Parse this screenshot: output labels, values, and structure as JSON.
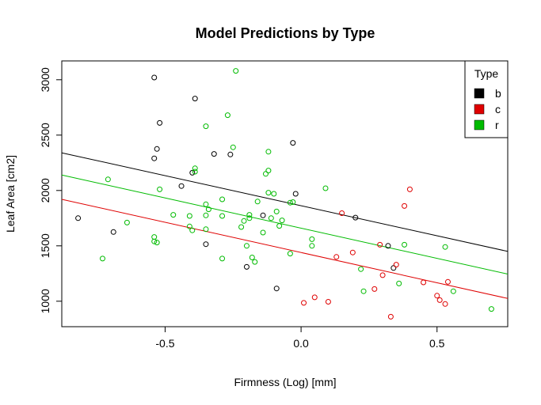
{
  "chart_data": {
    "type": "scatter",
    "title": "Model Predictions by Type",
    "xlabel": "Firmness (Log) [mm]",
    "ylabel": "Leaf Area [cm2]",
    "xlim": [
      -0.88,
      0.76
    ],
    "ylim": [
      770,
      3170
    ],
    "x_ticks": [
      -0.5,
      0.0,
      0.5
    ],
    "x_tick_labels": [
      "-0.5",
      "0.0",
      "0.5"
    ],
    "y_ticks": [
      1000,
      1500,
      2000,
      2500,
      3000
    ],
    "y_tick_labels": [
      "1000",
      "1500",
      "2000",
      "2500",
      "3000"
    ],
    "grid": false,
    "legend": {
      "title": "Type",
      "position": "top-right"
    },
    "series": [
      {
        "name": "b",
        "color": "#000000",
        "points": [
          [
            -0.82,
            1750
          ],
          [
            -0.69,
            1625
          ],
          [
            -0.54,
            3020
          ],
          [
            -0.53,
            2375
          ],
          [
            -0.52,
            2610
          ],
          [
            -0.54,
            2290
          ],
          [
            -0.44,
            2040
          ],
          [
            -0.39,
            2830
          ],
          [
            -0.4,
            2160
          ],
          [
            -0.35,
            1515
          ],
          [
            -0.32,
            2330
          ],
          [
            -0.26,
            2325
          ],
          [
            -0.2,
            1310
          ],
          [
            -0.14,
            1775
          ],
          [
            -0.09,
            1115
          ],
          [
            -0.03,
            2430
          ],
          [
            -0.02,
            1970
          ],
          [
            0.2,
            1755
          ],
          [
            0.32,
            1500
          ],
          [
            0.34,
            1300
          ]
        ],
        "fit_line": {
          "x": [
            -0.88,
            0.76
          ],
          "y": [
            2340,
            1450
          ]
        }
      },
      {
        "name": "c",
        "color": "#DF0000",
        "points": [
          [
            0.01,
            985
          ],
          [
            0.05,
            1035
          ],
          [
            0.1,
            995
          ],
          [
            0.13,
            1400
          ],
          [
            0.15,
            1795
          ],
          [
            0.19,
            1440
          ],
          [
            0.27,
            1110
          ],
          [
            0.29,
            1510
          ],
          [
            0.3,
            1235
          ],
          [
            0.33,
            860
          ],
          [
            0.35,
            1330
          ],
          [
            0.38,
            1860
          ],
          [
            0.4,
            2010
          ],
          [
            0.45,
            1170
          ],
          [
            0.5,
            1050
          ],
          [
            0.51,
            1010
          ],
          [
            0.53,
            975
          ],
          [
            0.54,
            1175
          ]
        ],
        "fit_line": {
          "x": [
            -0.88,
            0.76
          ],
          "y": [
            1920,
            1025
          ]
        }
      },
      {
        "name": "r",
        "color": "#00BB00",
        "points": [
          [
            -0.73,
            1385
          ],
          [
            -0.71,
            2100
          ],
          [
            -0.64,
            1710
          ],
          [
            -0.54,
            1580
          ],
          [
            -0.54,
            1540
          ],
          [
            -0.53,
            1530
          ],
          [
            -0.52,
            2010
          ],
          [
            -0.47,
            1780
          ],
          [
            -0.41,
            1770
          ],
          [
            -0.41,
            1675
          ],
          [
            -0.4,
            1640
          ],
          [
            -0.39,
            2200
          ],
          [
            -0.39,
            2170
          ],
          [
            -0.35,
            2580
          ],
          [
            -0.35,
            1875
          ],
          [
            -0.35,
            1775
          ],
          [
            -0.35,
            1650
          ],
          [
            -0.34,
            1830
          ],
          [
            -0.29,
            1920
          ],
          [
            -0.29,
            1770
          ],
          [
            -0.29,
            1385
          ],
          [
            -0.27,
            2680
          ],
          [
            -0.25,
            2390
          ],
          [
            -0.24,
            3080
          ],
          [
            -0.22,
            1670
          ],
          [
            -0.21,
            1725
          ],
          [
            -0.2,
            1500
          ],
          [
            -0.19,
            1780
          ],
          [
            -0.19,
            1750
          ],
          [
            -0.18,
            1395
          ],
          [
            -0.17,
            1355
          ],
          [
            -0.16,
            1900
          ],
          [
            -0.14,
            1620
          ],
          [
            -0.13,
            2150
          ],
          [
            -0.12,
            2180
          ],
          [
            -0.12,
            1980
          ],
          [
            -0.12,
            2350
          ],
          [
            -0.11,
            1750
          ],
          [
            -0.1,
            1970
          ],
          [
            -0.09,
            1810
          ],
          [
            -0.08,
            1680
          ],
          [
            -0.07,
            1730
          ],
          [
            -0.04,
            1430
          ],
          [
            -0.04,
            1890
          ],
          [
            -0.03,
            1895
          ],
          [
            0.04,
            1500
          ],
          [
            0.04,
            1560
          ],
          [
            0.09,
            2020
          ],
          [
            0.22,
            1290
          ],
          [
            0.23,
            1090
          ],
          [
            0.36,
            1160
          ],
          [
            0.38,
            1510
          ],
          [
            0.53,
            1490
          ],
          [
            0.56,
            1090
          ],
          [
            0.7,
            930
          ]
        ],
        "fit_line": {
          "x": [
            -0.88,
            0.76
          ],
          "y": [
            2140,
            1245
          ]
        }
      }
    ]
  }
}
